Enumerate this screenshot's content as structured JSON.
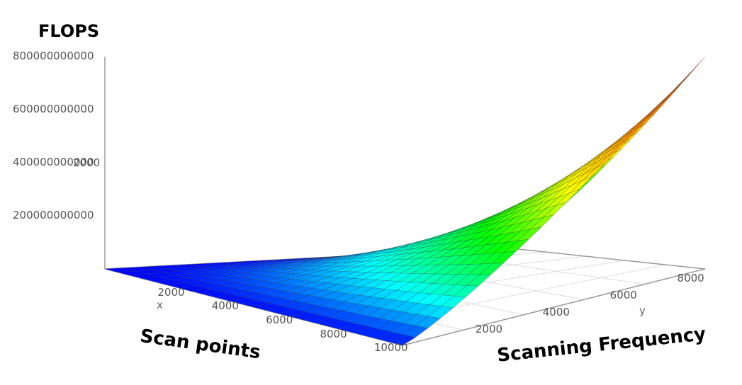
{
  "chart_data": {
    "type": "surface",
    "title": "FLOPS",
    "x_axis": {
      "letter": "x",
      "label": "Scan points",
      "range": [
        0,
        11000
      ],
      "ticks": [
        "2000",
        "4000",
        "6000",
        "8000",
        "10000"
      ]
    },
    "y_axis": {
      "letter": "y",
      "label": "Scanning Frequency",
      "range": [
        0,
        9000
      ],
      "ticks": [
        "2000",
        "4000",
        "6000",
        "8000"
      ]
    },
    "z_axis": {
      "range": [
        0,
        800000000000
      ],
      "ticks": [
        "200000000000",
        "400000000000",
        "600000000000",
        "800000000000"
      ],
      "overlap_tick": "2000"
    },
    "surface": {
      "x": [
        0,
        11000
      ],
      "y": [
        0,
        9000
      ],
      "corner_z": [
        {
          "x": 0,
          "y": 0,
          "z": 0
        },
        {
          "x": 11000,
          "y": 0,
          "z": 0
        },
        {
          "x": 0,
          "y": 9000,
          "z": 0
        },
        {
          "x": 11000,
          "y": 9000,
          "z": 800000000000
        }
      ],
      "grid_cells": 24,
      "colorscale": [
        "#0000ff",
        "#00ffff",
        "#00ff00",
        "#ffff00",
        "#ff8000",
        "#d04020"
      ]
    },
    "grid": true
  }
}
